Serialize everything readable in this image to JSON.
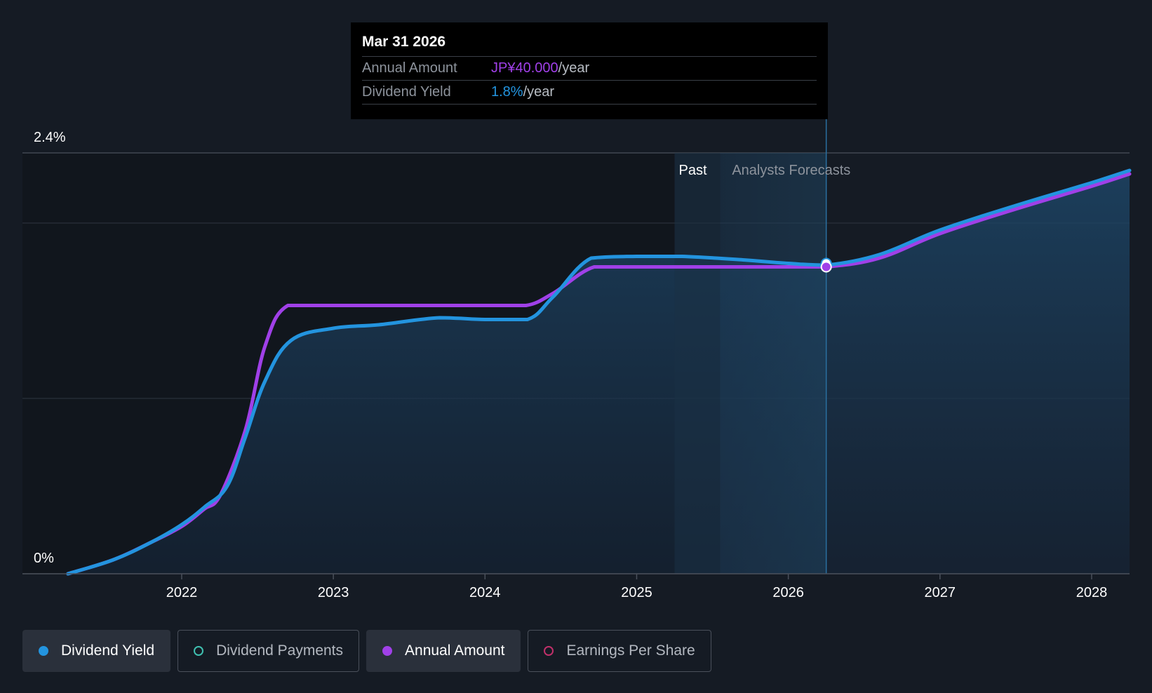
{
  "tooltip": {
    "date": "Mar 31 2026",
    "rows": [
      {
        "label": "Annual Amount",
        "value": "JP¥40.000",
        "suffix": "/year",
        "color": "#a040e8"
      },
      {
        "label": "Dividend Yield",
        "value": "1.8%",
        "suffix": "/year",
        "color": "#2394df"
      }
    ]
  },
  "region_labels": {
    "past": "Past",
    "forecast": "Analysts Forecasts"
  },
  "legend": [
    {
      "label": "Dividend Yield",
      "color": "#2394df",
      "filled": true,
      "active": true
    },
    {
      "label": "Dividend Payments",
      "color": "#3fc0b0",
      "filled": false,
      "active": false
    },
    {
      "label": "Annual Amount",
      "color": "#a040e8",
      "filled": true,
      "active": true
    },
    {
      "label": "Earnings Per Share",
      "color": "#c0306a",
      "filled": false,
      "active": false
    }
  ],
  "chart_data": {
    "type": "line",
    "title": "",
    "xlabel": "",
    "ylabel": "",
    "x_ticks": [
      "2022",
      "2023",
      "2024",
      "2025",
      "2026",
      "2027",
      "2028"
    ],
    "x_tick_values": [
      2022,
      2023,
      2024,
      2025,
      2026,
      2027,
      2028
    ],
    "y_tick_labels": [
      {
        "value": 2.4,
        "label": "2.4%"
      },
      {
        "value": 0,
        "label": "0%"
      }
    ],
    "gridlines": [
      2.4,
      2.0,
      1.0,
      0
    ],
    "xlim": [
      2020.95,
      2028.25
    ],
    "ylim": [
      0,
      2.4
    ],
    "past_start": 2025.25,
    "today": 2025.55,
    "forecast_end": 2026.25,
    "highlight": {
      "x": 2026.25,
      "yield": 1.8,
      "annual_amount": 40.0
    },
    "series": [
      {
        "name": "Dividend Yield",
        "unit": "%",
        "color": "#2394df",
        "points": [
          [
            2021.25,
            0.0
          ],
          [
            2021.55,
            0.08
          ],
          [
            2021.8,
            0.18
          ],
          [
            2022.0,
            0.28
          ],
          [
            2022.15,
            0.38
          ],
          [
            2022.3,
            0.5
          ],
          [
            2022.42,
            0.78
          ],
          [
            2022.55,
            1.1
          ],
          [
            2022.72,
            1.33
          ],
          [
            2023.0,
            1.4
          ],
          [
            2023.3,
            1.42
          ],
          [
            2023.7,
            1.46
          ],
          [
            2024.0,
            1.45
          ],
          [
            2024.28,
            1.45
          ],
          [
            2024.45,
            1.58
          ],
          [
            2024.7,
            1.8
          ],
          [
            2025.0,
            1.81
          ],
          [
            2025.3,
            1.81
          ],
          [
            2025.7,
            1.79
          ],
          [
            2026.0,
            1.77
          ],
          [
            2026.25,
            1.76
          ],
          [
            2026.6,
            1.82
          ],
          [
            2027.0,
            1.96
          ],
          [
            2027.5,
            2.1
          ],
          [
            2028.0,
            2.23
          ],
          [
            2028.25,
            2.3
          ]
        ]
      },
      {
        "name": "Annual Amount",
        "unit": "JP¥",
        "color": "#a040e8",
        "scale_note": "plotted on same visual scale as yield",
        "points": [
          [
            2021.25,
            0.0
          ],
          [
            2021.55,
            0.08
          ],
          [
            2021.8,
            0.18
          ],
          [
            2022.0,
            0.27
          ],
          [
            2022.15,
            0.37
          ],
          [
            2022.25,
            0.44
          ],
          [
            2022.42,
            0.82
          ],
          [
            2022.55,
            1.3
          ],
          [
            2022.7,
            1.53
          ],
          [
            2023.0,
            1.53
          ],
          [
            2023.5,
            1.53
          ],
          [
            2024.0,
            1.53
          ],
          [
            2024.27,
            1.53
          ],
          [
            2024.45,
            1.6
          ],
          [
            2024.72,
            1.75
          ],
          [
            2025.0,
            1.75
          ],
          [
            2025.5,
            1.75
          ],
          [
            2026.0,
            1.75
          ],
          [
            2026.25,
            1.75
          ],
          [
            2026.6,
            1.8
          ],
          [
            2027.0,
            1.94
          ],
          [
            2027.5,
            2.08
          ],
          [
            2028.0,
            2.21
          ],
          [
            2028.25,
            2.28
          ]
        ]
      }
    ]
  }
}
